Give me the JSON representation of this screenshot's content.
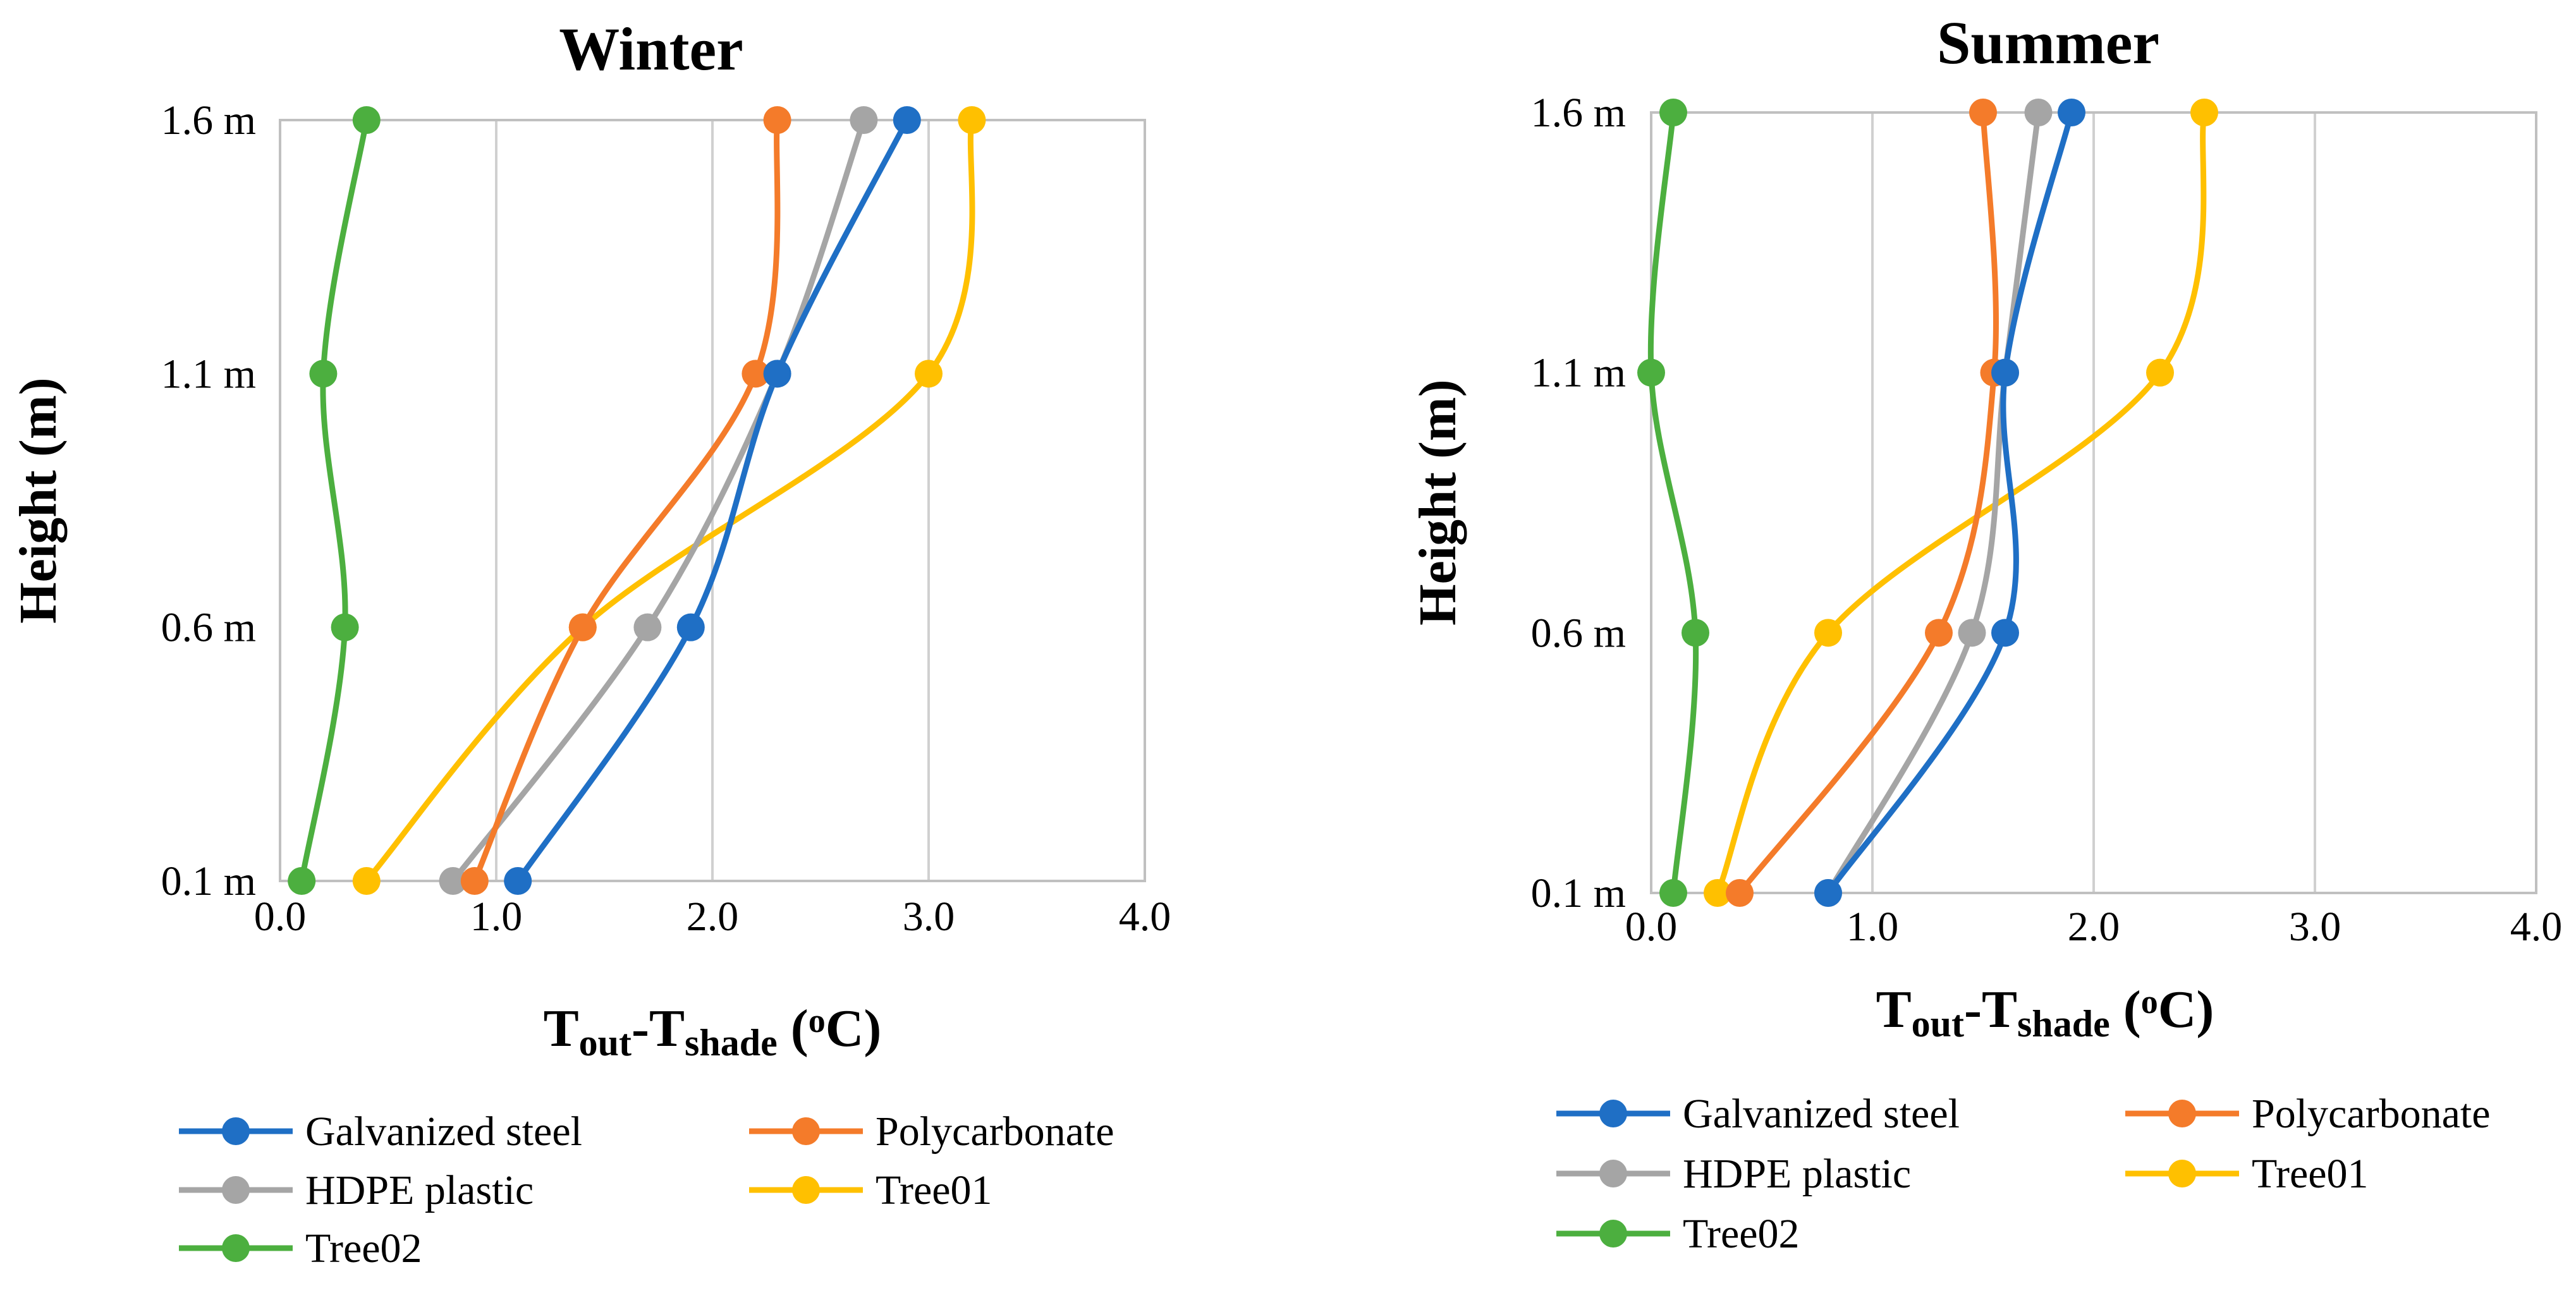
{
  "chart_data": [
    {
      "type": "line",
      "title": "Winter",
      "xlabel_main": "T",
      "xlabel_sub1": "out",
      "xlabel_mid": "-T",
      "xlabel_sub2": "shade",
      "xlabel_units_open": " (",
      "xlabel_units_sup": "o",
      "xlabel_units_close": "C)",
      "ylabel": "Height (m)",
      "xlim": [
        0,
        4
      ],
      "xticks": [
        "0.0",
        "1.0",
        "2.0",
        "3.0",
        "4.0"
      ],
      "yticks": [
        "0.1 m",
        "0.6 m",
        "1.1 m",
        "1.6 m"
      ],
      "y": [
        0.1,
        0.6,
        1.1,
        1.6
      ],
      "grid": "vertical",
      "legend_position": "bottom",
      "series": [
        {
          "name": "Galvanized steel",
          "color": "#1f6fc5",
          "values": [
            1.1,
            1.9,
            2.3,
            2.9
          ]
        },
        {
          "name": "Polycarbonate",
          "color": "#f47b2a",
          "values": [
            0.9,
            1.4,
            2.2,
            2.3
          ]
        },
        {
          "name": "HDPE plastic",
          "color": "#a5a5a5",
          "values": [
            0.8,
            1.7,
            2.3,
            2.7
          ]
        },
        {
          "name": "Tree01",
          "color": "#ffc000",
          "values": [
            0.4,
            1.4,
            3.0,
            3.2
          ]
        },
        {
          "name": "Tree02",
          "color": "#4caf3f",
          "values": [
            0.1,
            0.3,
            0.2,
            0.4
          ]
        }
      ]
    },
    {
      "type": "line",
      "title": "Summer",
      "xlabel_main": "T",
      "xlabel_sub1": "out",
      "xlabel_mid": "-T",
      "xlabel_sub2": "shade",
      "xlabel_units_open": " (",
      "xlabel_units_sup": "o",
      "xlabel_units_close": "C)",
      "ylabel": "Height (m)",
      "xlim": [
        0,
        4
      ],
      "xticks": [
        "0.0",
        "1.0",
        "2.0",
        "3.0",
        "4.0"
      ],
      "yticks": [
        "0.1 m",
        "0.6 m",
        "1.1 m",
        "1.6 m"
      ],
      "y": [
        0.1,
        0.6,
        1.1,
        1.6
      ],
      "grid": "vertical",
      "legend_position": "bottom",
      "series": [
        {
          "name": "Galvanized steel",
          "color": "#1f6fc5",
          "values": [
            0.8,
            1.6,
            1.6,
            1.9
          ]
        },
        {
          "name": "Polycarbonate",
          "color": "#f47b2a",
          "values": [
            0.4,
            1.3,
            1.55,
            1.5
          ]
        },
        {
          "name": "HDPE plastic",
          "color": "#a5a5a5",
          "values": [
            0.8,
            1.45,
            1.6,
            1.75
          ]
        },
        {
          "name": "Tree01",
          "color": "#ffc000",
          "values": [
            0.3,
            0.8,
            2.3,
            2.5
          ]
        },
        {
          "name": "Tree02",
          "color": "#4caf3f",
          "values": [
            0.1,
            0.2,
            0.0,
            0.1
          ]
        }
      ]
    }
  ]
}
